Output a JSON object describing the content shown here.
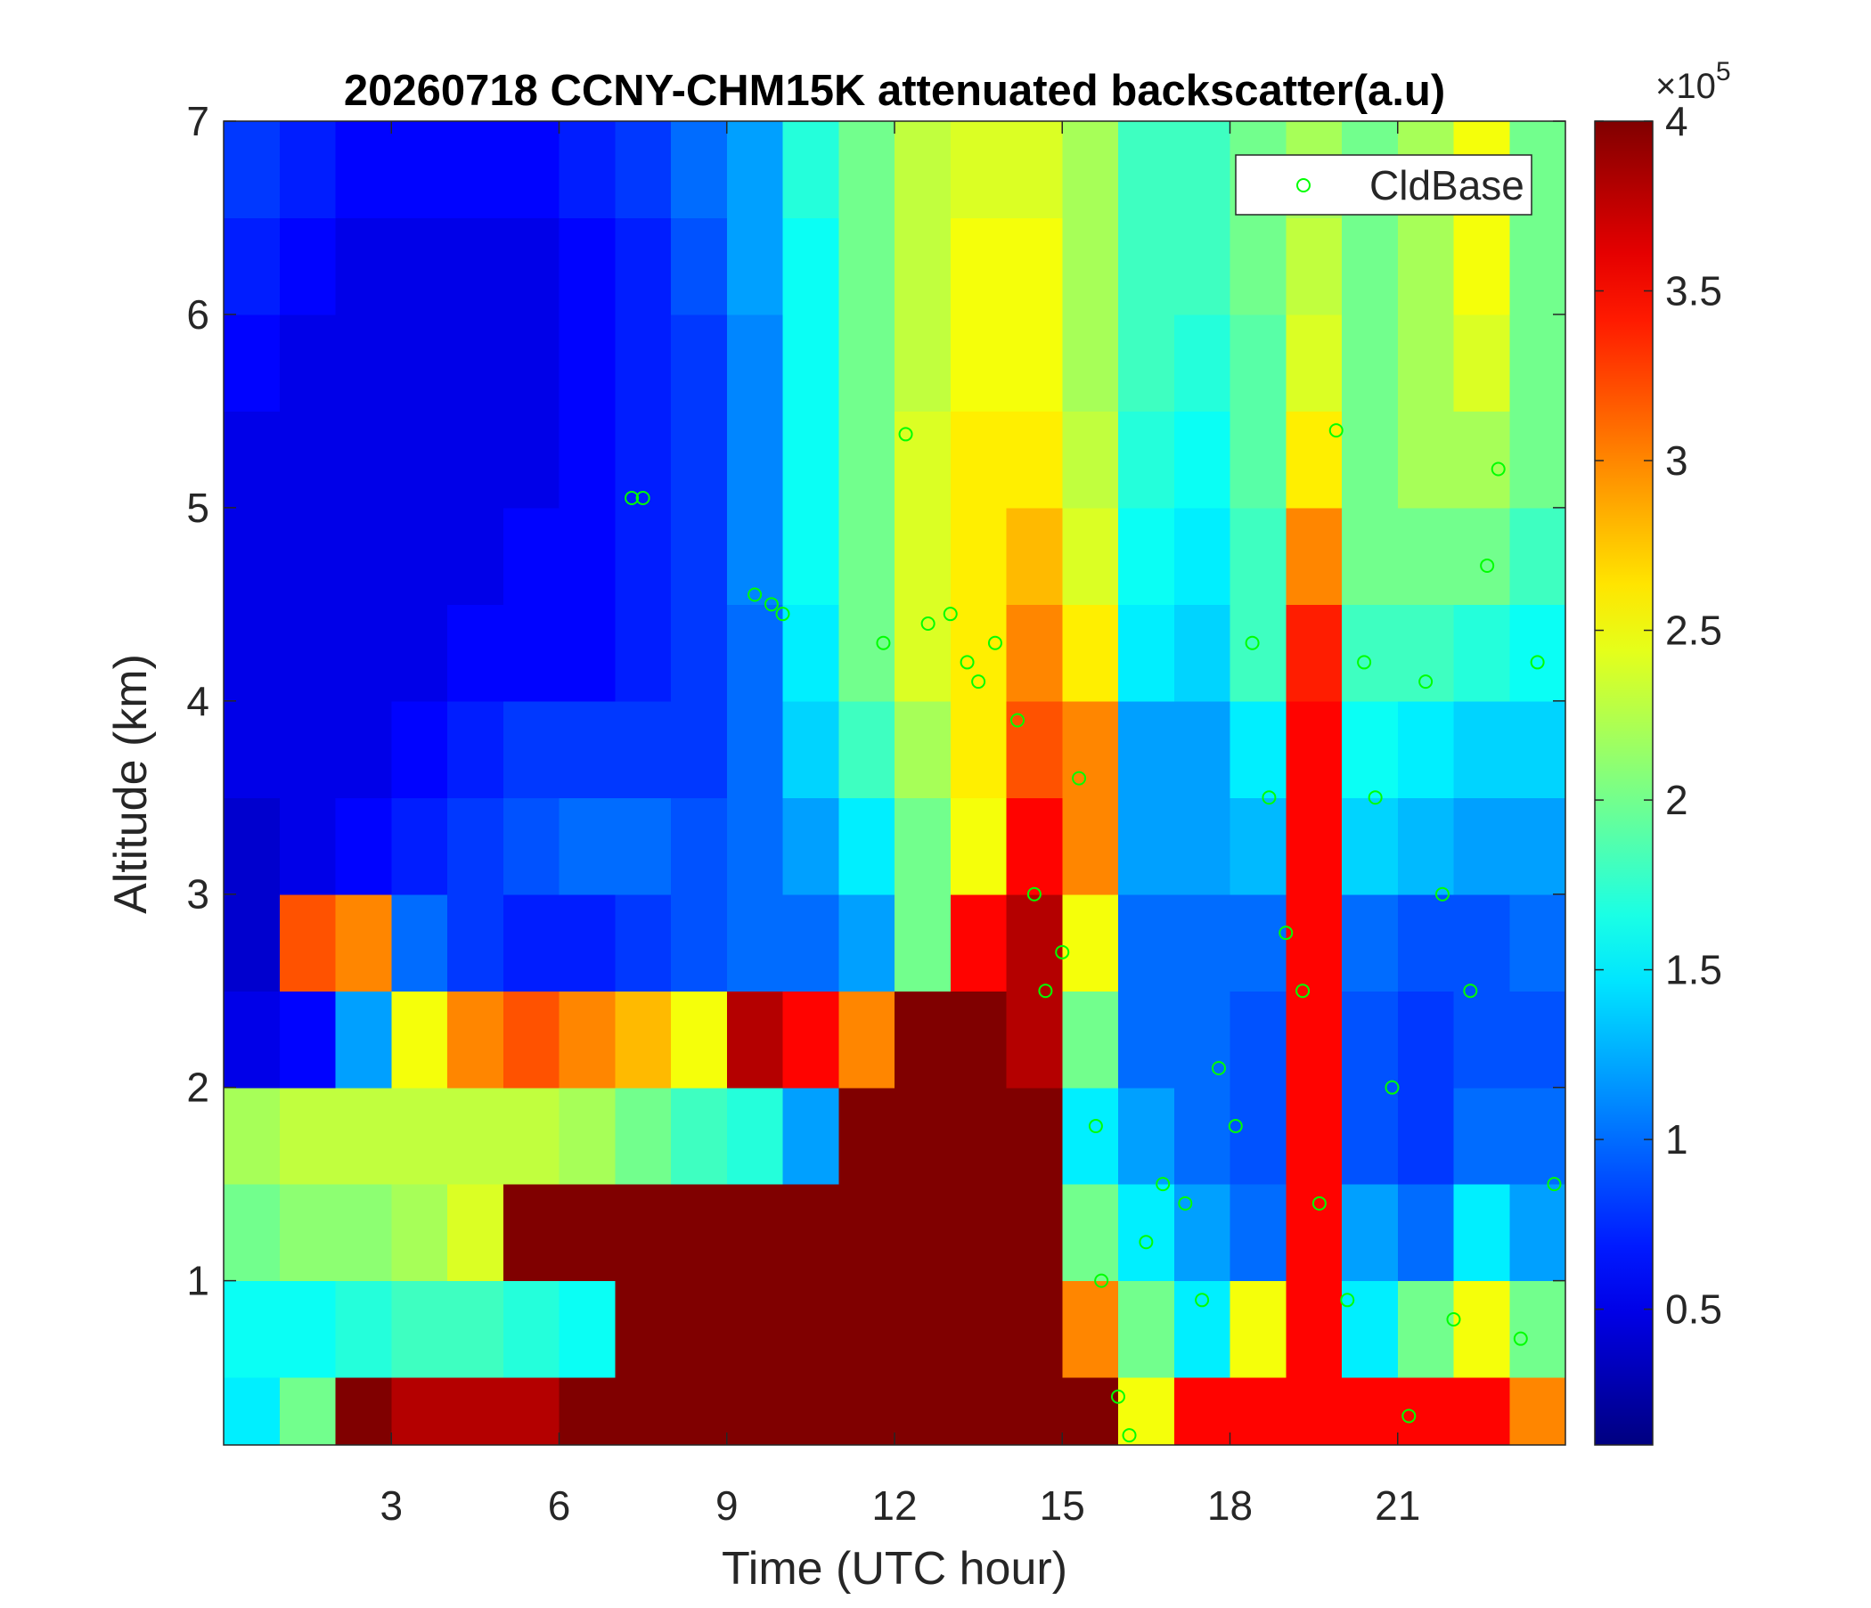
{
  "chart_data": {
    "type": "heatmap",
    "title": "20260718 CCNY-CHM15K attenuated backscatter(a.u)",
    "xlabel": "Time (UTC hour)",
    "ylabel": "Altitude (km)",
    "xlim": [
      0,
      24
    ],
    "ylim": [
      0.15,
      7
    ],
    "xticks": [
      3,
      6,
      9,
      12,
      15,
      18,
      21
    ],
    "yticks": [
      1,
      2,
      3,
      4,
      5,
      6,
      7
    ],
    "x_edges": [
      0,
      1,
      2,
      3,
      4,
      5,
      6,
      7,
      8,
      9,
      10,
      11,
      12,
      13,
      14,
      15,
      16,
      17,
      18,
      19,
      20,
      21,
      22,
      23,
      24
    ],
    "y_edges": [
      0.15,
      0.5,
      1,
      1.5,
      2,
      2.5,
      3,
      3.5,
      4,
      4.5,
      5,
      5.5,
      6,
      6.5,
      7
    ],
    "z": [
      [
        1.5,
        2.0,
        4,
        3.8,
        3.8,
        3.8,
        4,
        4,
        4,
        4,
        4,
        4,
        4,
        4,
        4,
        4,
        2.5,
        3.5,
        3.5,
        3.5,
        3.5,
        3.5,
        3.5,
        3.0
      ],
      [
        1.6,
        1.6,
        1.7,
        1.8,
        1.8,
        1.7,
        1.6,
        4,
        4,
        4,
        4,
        4,
        4,
        4,
        4,
        3.0,
        2.0,
        1.5,
        2.5,
        3.5,
        1.5,
        2.0,
        2.5,
        2.0
      ],
      [
        2.0,
        2.1,
        2.1,
        2.2,
        2.4,
        4,
        4,
        4,
        4,
        4,
        4,
        4,
        4,
        4,
        4,
        2.0,
        1.5,
        1.2,
        1.0,
        3.5,
        1.2,
        1.0,
        1.5,
        1.2
      ],
      [
        2.2,
        2.3,
        2.3,
        2.3,
        2.3,
        2.3,
        2.2,
        2.0,
        1.8,
        1.7,
        1.2,
        4,
        4,
        4,
        4,
        1.5,
        1.2,
        1.0,
        0.9,
        3.5,
        0.9,
        0.8,
        1.0,
        1.0
      ],
      [
        0.5,
        0.6,
        1.2,
        2.5,
        3.0,
        3.2,
        3.0,
        2.8,
        2.5,
        3.8,
        3.5,
        3.0,
        4,
        4,
        3.8,
        2.0,
        1.0,
        1.0,
        0.9,
        3.5,
        0.9,
        0.8,
        0.9,
        0.9
      ],
      [
        0.4,
        3.2,
        3.0,
        1.0,
        0.8,
        0.7,
        0.7,
        0.8,
        0.9,
        1.0,
        1.0,
        1.2,
        2.0,
        3.5,
        3.8,
        2.5,
        1.0,
        1.0,
        1.0,
        3.5,
        1.0,
        0.9,
        0.9,
        1.0
      ],
      [
        0.4,
        0.5,
        0.6,
        0.7,
        0.8,
        0.9,
        1.0,
        1.0,
        0.9,
        1.0,
        1.2,
        1.5,
        2.0,
        2.5,
        3.5,
        3.0,
        1.2,
        1.2,
        1.3,
        3.5,
        1.4,
        1.3,
        1.2,
        1.2
      ],
      [
        0.5,
        0.5,
        0.5,
        0.6,
        0.7,
        0.8,
        0.8,
        0.8,
        0.8,
        1.0,
        1.4,
        1.8,
        2.2,
        2.6,
        3.2,
        3.0,
        1.2,
        1.2,
        1.5,
        3.5,
        1.6,
        1.5,
        1.4,
        1.4
      ],
      [
        0.5,
        0.5,
        0.5,
        0.5,
        0.6,
        0.6,
        0.6,
        0.7,
        0.8,
        1.0,
        1.5,
        2.0,
        2.4,
        2.6,
        3.0,
        2.6,
        1.5,
        1.4,
        1.8,
        3.4,
        1.8,
        1.8,
        1.7,
        1.6
      ],
      [
        0.5,
        0.5,
        0.5,
        0.5,
        0.5,
        0.6,
        0.6,
        0.7,
        0.8,
        1.1,
        1.6,
        2.0,
        2.4,
        2.6,
        2.8,
        2.4,
        1.6,
        1.5,
        1.8,
        3.0,
        2.0,
        2.0,
        2.0,
        1.8
      ],
      [
        0.5,
        0.5,
        0.5,
        0.5,
        0.5,
        0.5,
        0.6,
        0.7,
        0.8,
        1.1,
        1.6,
        2.0,
        2.4,
        2.6,
        2.6,
        2.3,
        1.7,
        1.6,
        1.9,
        2.6,
        2.0,
        2.2,
        2.2,
        2.0
      ],
      [
        0.6,
        0.5,
        0.5,
        0.5,
        0.5,
        0.5,
        0.6,
        0.7,
        0.8,
        1.1,
        1.6,
        2.0,
        2.3,
        2.5,
        2.5,
        2.2,
        1.8,
        1.7,
        1.9,
        2.4,
        2.0,
        2.2,
        2.4,
        2.0
      ],
      [
        0.7,
        0.6,
        0.5,
        0.5,
        0.5,
        0.5,
        0.6,
        0.7,
        0.9,
        1.2,
        1.6,
        2.0,
        2.3,
        2.5,
        2.5,
        2.2,
        1.8,
        1.8,
        2.0,
        2.3,
        2.0,
        2.2,
        2.5,
        2.0
      ],
      [
        0.8,
        0.7,
        0.6,
        0.6,
        0.6,
        0.6,
        0.7,
        0.8,
        1.0,
        1.2,
        1.7,
        2.0,
        2.3,
        2.4,
        2.4,
        2.2,
        1.8,
        1.8,
        2.0,
        2.2,
        2.0,
        2.2,
        2.5,
        2.0
      ]
    ],
    "colormap": "jet",
    "clim": [
      0.1,
      4
    ],
    "colorbar_ticks": [
      0.5,
      1,
      1.5,
      2,
      2.5,
      3,
      3.5,
      4
    ],
    "colorbar_multiplier": "×10",
    "colorbar_exponent": "5",
    "legend": "upper right",
    "series": [
      {
        "name": "CldBase",
        "type": "scatter",
        "color": "#00ff00",
        "x": [
          7.3,
          7.5,
          9.5,
          9.8,
          10.0,
          11.8,
          12.2,
          12.6,
          13.0,
          13.3,
          13.5,
          13.8,
          14.2,
          14.5,
          14.7,
          15.0,
          15.3,
          15.6,
          15.7,
          16.0,
          16.2,
          16.5,
          16.8,
          17.2,
          17.5,
          17.8,
          18.1,
          18.4,
          18.7,
          19.0,
          19.3,
          19.6,
          19.9,
          20.1,
          20.4,
          20.6,
          20.9,
          21.2,
          21.5,
          21.8,
          22.0,
          22.3,
          22.6,
          22.8,
          23.2,
          23.5,
          23.8
        ],
        "y": [
          5.05,
          5.05,
          4.55,
          4.5,
          4.45,
          4.3,
          5.38,
          4.4,
          4.45,
          4.2,
          4.1,
          4.3,
          3.9,
          3.0,
          2.5,
          2.7,
          3.6,
          1.8,
          1.0,
          0.4,
          0.2,
          1.2,
          1.5,
          1.4,
          0.9,
          2.1,
          1.8,
          4.3,
          3.5,
          2.8,
          2.5,
          1.4,
          5.4,
          0.9,
          4.2,
          3.5,
          2.0,
          0.3,
          4.1,
          3.0,
          0.8,
          2.5,
          4.7,
          5.2,
          0.7,
          4.2,
          1.5
        ]
      }
    ]
  }
}
